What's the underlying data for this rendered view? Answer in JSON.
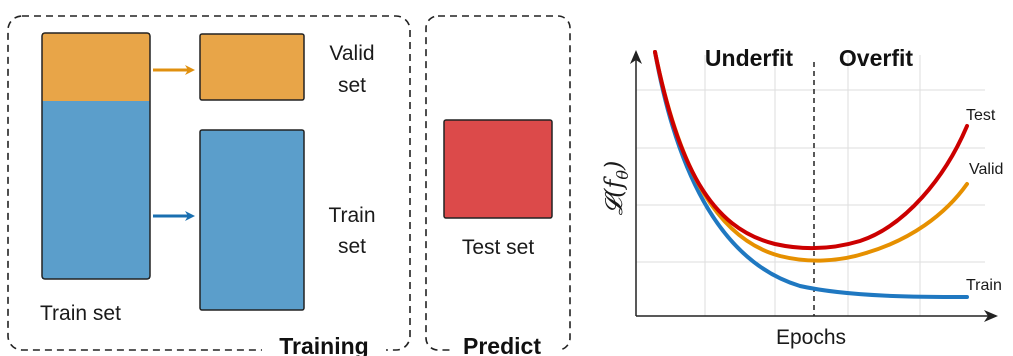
{
  "colors": {
    "orange": "#e8a548",
    "blue": "#5b9ecb",
    "red": "#dc4a4a",
    "arrow_orange": "#e0900f",
    "arrow_blue": "#1a6fb0",
    "curve_test": "#cc0000",
    "curve_valid": "#e69000",
    "curve_train": "#1f78c1"
  },
  "training_panel": {
    "title": "Training",
    "train_set_label": "Train set",
    "valid_set_label_line1": "Valid",
    "valid_set_label_line2": "set",
    "train_set_right_line1": "Train",
    "train_set_right_line2": "set"
  },
  "predict_panel": {
    "title": "Predict",
    "test_set_label": "Test set"
  },
  "loss_plot": {
    "region_left": "Underfit",
    "region_right": "Overfit",
    "y_label": "𝓛(f",
    "y_label_sub": "θ",
    "y_label_close": ")",
    "x_label": "Epochs",
    "curve_labels": {
      "test": "Test",
      "valid": "Valid",
      "train": "Train"
    }
  }
}
